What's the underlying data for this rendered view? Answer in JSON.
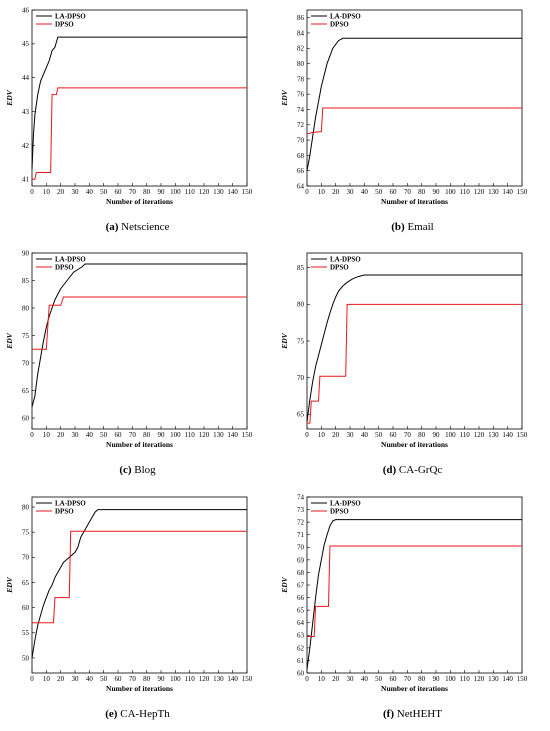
{
  "chart_data": [
    {
      "type": "line",
      "caption_letter": "(a)",
      "caption_name": "Netscience",
      "xlabel": "Number of iterations",
      "ylabel": "EDV",
      "xlim": [
        0,
        150
      ],
      "ylim": [
        40.8,
        46
      ],
      "xticks": [
        0,
        10,
        20,
        30,
        40,
        50,
        60,
        70,
        80,
        90,
        100,
        110,
        120,
        130,
        140,
        150
      ],
      "yticks": [
        41,
        42,
        43,
        44,
        45,
        46
      ],
      "legend_position": "top-left",
      "series": [
        {
          "name": "LA-DPSO",
          "color": "#000000",
          "points": [
            [
              0,
              41.3
            ],
            [
              1,
              42.3
            ],
            [
              2,
              42.9
            ],
            [
              4,
              43.5
            ],
            [
              6,
              43.9
            ],
            [
              8,
              44.1
            ],
            [
              10,
              44.3
            ],
            [
              12,
              44.5
            ],
            [
              14,
              44.8
            ],
            [
              16,
              44.9
            ],
            [
              18,
              45.2
            ],
            [
              20,
              45.2
            ],
            [
              150,
              45.2
            ]
          ]
        },
        {
          "name": "DPSO",
          "color": "#e8171b",
          "points": [
            [
              0,
              41
            ],
            [
              2,
              41
            ],
            [
              3,
              41.2
            ],
            [
              13,
              41.2
            ],
            [
              14,
              43.5
            ],
            [
              17,
              43.5
            ],
            [
              18,
              43.7
            ],
            [
              150,
              43.7
            ]
          ]
        }
      ]
    },
    {
      "type": "line",
      "caption_letter": "(b)",
      "caption_name": "Email",
      "xlabel": "Number of iterations",
      "ylabel": "EDV",
      "xlim": [
        0,
        150
      ],
      "ylim": [
        64,
        87
      ],
      "xticks": [
        0,
        10,
        20,
        30,
        40,
        50,
        60,
        70,
        80,
        90,
        100,
        110,
        120,
        130,
        140,
        150
      ],
      "yticks": [
        64,
        66,
        68,
        70,
        72,
        74,
        76,
        78,
        80,
        82,
        84,
        86
      ],
      "legend_position": "top-left",
      "series": [
        {
          "name": "LA-DPSO",
          "color": "#000000",
          "points": [
            [
              0,
              66
            ],
            [
              2,
              68
            ],
            [
              4,
              70.5
            ],
            [
              6,
              73
            ],
            [
              8,
              75
            ],
            [
              10,
              77
            ],
            [
              12,
              78.5
            ],
            [
              14,
              80
            ],
            [
              16,
              81
            ],
            [
              18,
              82
            ],
            [
              20,
              82.5
            ],
            [
              22,
              83
            ],
            [
              25,
              83.3
            ],
            [
              150,
              83.3
            ]
          ]
        },
        {
          "name": "DPSO",
          "color": "#e8171b",
          "points": [
            [
              0,
              70.8
            ],
            [
              4,
              71
            ],
            [
              10,
              71.1
            ],
            [
              11,
              74.2
            ],
            [
              150,
              74.2
            ]
          ]
        }
      ]
    },
    {
      "type": "line",
      "caption_letter": "(c)",
      "caption_name": "Blog",
      "xlabel": "Number of iterations",
      "ylabel": "EDV",
      "xlim": [
        0,
        150
      ],
      "ylim": [
        58,
        90
      ],
      "xticks": [
        0,
        10,
        20,
        30,
        40,
        50,
        60,
        70,
        80,
        90,
        100,
        110,
        120,
        130,
        140,
        150
      ],
      "yticks": [
        60,
        65,
        70,
        75,
        80,
        85,
        90
      ],
      "legend_position": "top-left",
      "series": [
        {
          "name": "LA-DPSO",
          "color": "#000000",
          "points": [
            [
              0,
              62
            ],
            [
              2,
              64
            ],
            [
              4,
              68
            ],
            [
              6,
              71
            ],
            [
              8,
              74
            ],
            [
              10,
              76.5
            ],
            [
              12,
              78.5
            ],
            [
              14,
              80
            ],
            [
              16,
              81.5
            ],
            [
              18,
              82.5
            ],
            [
              20,
              83.5
            ],
            [
              23,
              84.5
            ],
            [
              26,
              85.5
            ],
            [
              29,
              86.5
            ],
            [
              32,
              87
            ],
            [
              35,
              87.5
            ],
            [
              37,
              88
            ],
            [
              150,
              88
            ]
          ]
        },
        {
          "name": "DPSO",
          "color": "#e8171b",
          "points": [
            [
              0,
              72.5
            ],
            [
              10,
              72.5
            ],
            [
              12,
              80.5
            ],
            [
              20,
              80.5
            ],
            [
              22,
              82
            ],
            [
              150,
              82
            ]
          ]
        }
      ]
    },
    {
      "type": "line",
      "caption_letter": "(d)",
      "caption_name": "CA-GrQc",
      "xlabel": "Number of iterations",
      "ylabel": "EDV",
      "xlim": [
        0,
        150
      ],
      "ylim": [
        63,
        87
      ],
      "xticks": [
        0,
        10,
        20,
        30,
        40,
        50,
        60,
        70,
        80,
        90,
        100,
        110,
        120,
        130,
        140,
        150
      ],
      "yticks": [
        65,
        70,
        75,
        80,
        85
      ],
      "legend_position": "top-left",
      "series": [
        {
          "name": "LA-DPSO",
          "color": "#000000",
          "points": [
            [
              0,
              64
            ],
            [
              2,
              67
            ],
            [
              4,
              69.5
            ],
            [
              6,
              71.5
            ],
            [
              8,
              73
            ],
            [
              10,
              74.5
            ],
            [
              12,
              76
            ],
            [
              14,
              77.5
            ],
            [
              16,
              78.8
            ],
            [
              18,
              80
            ],
            [
              20,
              81
            ],
            [
              22,
              81.8
            ],
            [
              25,
              82.5
            ],
            [
              28,
              83
            ],
            [
              32,
              83.5
            ],
            [
              36,
              83.8
            ],
            [
              40,
              84
            ],
            [
              150,
              84
            ]
          ]
        },
        {
          "name": "DPSO",
          "color": "#e8171b",
          "points": [
            [
              0,
              63.8
            ],
            [
              2,
              63.8
            ],
            [
              3,
              66.8
            ],
            [
              8,
              66.8
            ],
            [
              9,
              70.2
            ],
            [
              27,
              70.2
            ],
            [
              28,
              80
            ],
            [
              150,
              80
            ]
          ]
        }
      ]
    },
    {
      "type": "line",
      "caption_letter": "(e)",
      "caption_name": "CA-HepTh",
      "xlabel": "Number of iterations",
      "ylabel": "EDV",
      "xlim": [
        0,
        150
      ],
      "ylim": [
        47,
        82
      ],
      "xticks": [
        0,
        10,
        20,
        30,
        40,
        50,
        60,
        70,
        80,
        90,
        100,
        110,
        120,
        130,
        140,
        150
      ],
      "yticks": [
        50,
        55,
        60,
        65,
        70,
        75,
        80
      ],
      "legend_position": "top-left",
      "series": [
        {
          "name": "LA-DPSO",
          "color": "#000000",
          "points": [
            [
              0,
              50
            ],
            [
              2,
              53.5
            ],
            [
              4,
              56.5
            ],
            [
              6,
              58.5
            ],
            [
              8,
              60.5
            ],
            [
              10,
              62
            ],
            [
              12,
              63.5
            ],
            [
              14,
              64.5
            ],
            [
              16,
              66
            ],
            [
              18,
              67
            ],
            [
              20,
              68
            ],
            [
              22,
              69
            ],
            [
              24,
              69.5
            ],
            [
              26,
              70
            ],
            [
              28,
              70.5
            ],
            [
              30,
              71
            ],
            [
              32,
              72
            ],
            [
              34,
              74
            ],
            [
              36,
              75
            ],
            [
              38,
              76
            ],
            [
              40,
              77
            ],
            [
              42,
              78
            ],
            [
              44,
              79
            ],
            [
              46,
              79.5
            ],
            [
              50,
              79.5
            ],
            [
              150,
              79.5
            ]
          ]
        },
        {
          "name": "DPSO",
          "color": "#e8171b",
          "points": [
            [
              0,
              57
            ],
            [
              15,
              57
            ],
            [
              16,
              62
            ],
            [
              26,
              62
            ],
            [
              27,
              75.2
            ],
            [
              150,
              75.2
            ]
          ]
        }
      ]
    },
    {
      "type": "line",
      "caption_letter": "(f)",
      "caption_name": "NetHEHT",
      "xlabel": "Number of iterations",
      "ylabel": "EDV",
      "xlim": [
        0,
        150
      ],
      "ylim": [
        60,
        74
      ],
      "xticks": [
        0,
        10,
        20,
        30,
        40,
        50,
        60,
        70,
        80,
        90,
        100,
        110,
        120,
        130,
        140,
        150
      ],
      "yticks": [
        60,
        61,
        62,
        63,
        64,
        65,
        66,
        67,
        68,
        69,
        70,
        71,
        72,
        73,
        74
      ],
      "legend_position": "top-left",
      "series": [
        {
          "name": "LA-DPSO",
          "color": "#000000",
          "points": [
            [
              0,
              60.3
            ],
            [
              2,
              62
            ],
            [
              4,
              64
            ],
            [
              6,
              66
            ],
            [
              8,
              67.8
            ],
            [
              10,
              69
            ],
            [
              12,
              70.2
            ],
            [
              14,
              71
            ],
            [
              16,
              71.7
            ],
            [
              18,
              72.1
            ],
            [
              20,
              72.2
            ],
            [
              150,
              72.2
            ]
          ]
        },
        {
          "name": "DPSO",
          "color": "#e8171b",
          "points": [
            [
              0,
              62.9
            ],
            [
              5,
              62.9
            ],
            [
              6,
              65.3
            ],
            [
              15,
              65.3
            ],
            [
              16,
              70.1
            ],
            [
              150,
              70.1
            ]
          ]
        }
      ]
    }
  ]
}
